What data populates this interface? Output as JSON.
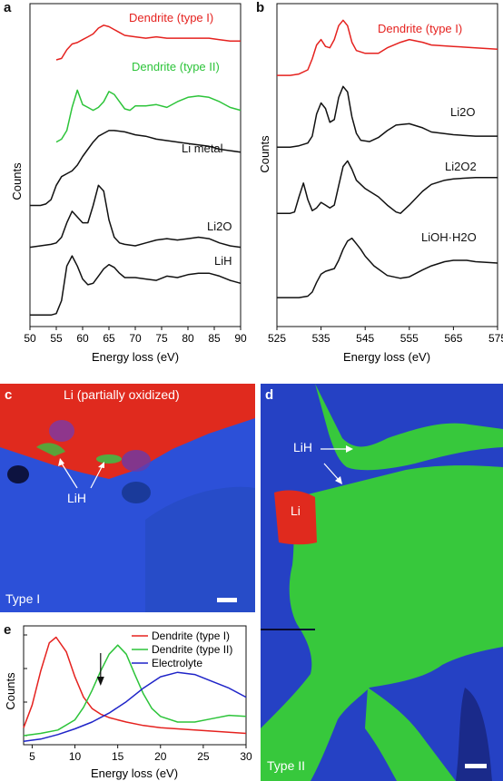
{
  "panels": {
    "a": {
      "letter": "a",
      "ylabel": "Counts",
      "xlabel": "Energy loss (eV)",
      "xticks": [
        "50",
        "55",
        "60",
        "65",
        "70",
        "75",
        "80",
        "85",
        "90"
      ],
      "labels": {
        "d1": "Dendrite (type I)",
        "d2": "Dendrite (type II)",
        "li": "Li metal",
        "li2o": "Li2O",
        "lih": "LiH"
      }
    },
    "b": {
      "letter": "b",
      "ylabel": "Counts",
      "xlabel": "Energy loss (eV)",
      "xticks": [
        "525",
        "535",
        "545",
        "555",
        "565",
        "575"
      ],
      "labels": {
        "d1": "Dendrite (type I)",
        "li2o": "Li2O",
        "li2o2": "Li2O2",
        "lioh": "LiOH·H2O"
      }
    },
    "c": {
      "letter": "c",
      "top_label": "Li (partially oxidized)",
      "lih_label": "LiH",
      "corner_label": "Type I"
    },
    "d": {
      "letter": "d",
      "lih_label": "LiH",
      "li_label": "Li",
      "corner_label": "Type II"
    },
    "e": {
      "letter": "e",
      "ylabel": "Counts",
      "xlabel": "Energy loss (eV)",
      "xticks": [
        "5",
        "10",
        "15",
        "20",
        "25",
        "30"
      ],
      "legend": [
        "Dendrite (type I)",
        "Dendrite (type II)",
        "Electrolyte"
      ]
    }
  },
  "colors": {
    "red": "#e5221f",
    "green": "#2dc43a",
    "blue": "#1f24c8",
    "black": "#111111"
  },
  "chart_data": [
    {
      "panel": "a",
      "type": "line",
      "xlabel": "Energy loss (eV)",
      "ylabel": "Counts",
      "xlim": [
        50,
        90
      ],
      "yticks_shown": false,
      "series": [
        {
          "name": "Dendrite (type I)",
          "color": "#e5221f",
          "x": [
            55,
            56,
            57,
            58,
            59,
            60,
            61,
            62,
            63,
            64,
            65,
            66,
            67,
            68,
            70,
            72,
            74,
            76,
            78,
            80,
            82,
            84,
            86,
            88,
            90
          ],
          "y": [
            8.95,
            9.0,
            9.3,
            9.5,
            9.55,
            9.65,
            9.75,
            9.85,
            10.05,
            10.15,
            10.1,
            10.0,
            9.9,
            9.8,
            9.75,
            9.7,
            9.75,
            9.7,
            9.7,
            9.7,
            9.7,
            9.7,
            9.65,
            9.6,
            9.6
          ]
        },
        {
          "name": "Dendrite (type II)",
          "color": "#2dc43a",
          "x": [
            55,
            56,
            57,
            58,
            59,
            60,
            61,
            62,
            63,
            64,
            65,
            66,
            67,
            68,
            69,
            70,
            72,
            74,
            76,
            78,
            80,
            82,
            84,
            86,
            88,
            90
          ],
          "y": [
            6.1,
            6.2,
            6.5,
            7.3,
            7.9,
            7.4,
            7.3,
            7.2,
            7.3,
            7.5,
            7.85,
            7.75,
            7.5,
            7.25,
            7.2,
            7.35,
            7.35,
            7.4,
            7.3,
            7.5,
            7.65,
            7.7,
            7.65,
            7.5,
            7.3,
            7.2
          ]
        },
        {
          "name": "Li metal",
          "color": "#111111",
          "x": [
            50,
            51,
            52,
            53,
            54,
            55,
            56,
            57,
            58,
            59,
            60,
            61,
            62,
            63,
            64,
            65,
            66,
            68,
            70,
            72,
            74,
            76,
            78,
            80,
            82,
            84,
            86,
            88,
            90
          ],
          "y": [
            3.9,
            3.9,
            3.9,
            3.95,
            4.1,
            4.6,
            4.9,
            5.0,
            5.1,
            5.3,
            5.6,
            5.85,
            6.1,
            6.3,
            6.4,
            6.5,
            6.5,
            6.45,
            6.35,
            6.3,
            6.2,
            6.15,
            6.1,
            6.05,
            6.0,
            5.95,
            5.85,
            5.8,
            5.75
          ]
        },
        {
          "name": "Li2O",
          "color": "#111111",
          "x": [
            50,
            52,
            54,
            55,
            56,
            57,
            58,
            59,
            60,
            61,
            62,
            63,
            64,
            65,
            66,
            67,
            68,
            70,
            72,
            74,
            76,
            78,
            80,
            82,
            84,
            86,
            88,
            90
          ],
          "y": [
            2.45,
            2.5,
            2.55,
            2.6,
            2.8,
            3.3,
            3.7,
            3.5,
            3.3,
            3.3,
            3.9,
            4.6,
            4.4,
            3.4,
            2.8,
            2.6,
            2.55,
            2.5,
            2.6,
            2.7,
            2.75,
            2.7,
            2.75,
            2.8,
            2.75,
            2.6,
            2.5,
            2.45
          ]
        },
        {
          "name": "LiH",
          "color": "#111111",
          "x": [
            50,
            52,
            54,
            55,
            56,
            57,
            58,
            59,
            60,
            61,
            62,
            63,
            64,
            65,
            66,
            67,
            68,
            70,
            72,
            74,
            76,
            78,
            80,
            82,
            84,
            86,
            88,
            90
          ],
          "y": [
            0.1,
            0.1,
            0.1,
            0.15,
            0.6,
            1.8,
            2.15,
            1.8,
            1.35,
            1.15,
            1.2,
            1.45,
            1.7,
            1.85,
            1.75,
            1.55,
            1.4,
            1.4,
            1.35,
            1.3,
            1.45,
            1.4,
            1.5,
            1.55,
            1.55,
            1.45,
            1.3,
            1.2
          ]
        }
      ]
    },
    {
      "panel": "b",
      "type": "line",
      "xlabel": "Energy loss (eV)",
      "ylabel": "Counts",
      "xlim": [
        525,
        575
      ],
      "yticks_shown": false,
      "series": [
        {
          "name": "Dendrite (type I)",
          "color": "#e5221f",
          "x": [
            525,
            528,
            530,
            532,
            533,
            534,
            535,
            536,
            537,
            538,
            539,
            540,
            541,
            542,
            543,
            545,
            548,
            550,
            553,
            555,
            558,
            560,
            565,
            570,
            575
          ],
          "y": [
            9.3,
            9.3,
            9.35,
            9.5,
            9.9,
            10.4,
            10.6,
            10.35,
            10.3,
            10.6,
            11.1,
            11.3,
            11.1,
            10.5,
            10.2,
            10.1,
            10.1,
            10.3,
            10.5,
            10.6,
            10.5,
            10.4,
            10.35,
            10.3,
            10.25
          ]
        },
        {
          "name": "Li2O",
          "color": "#111111",
          "x": [
            525,
            528,
            530,
            532,
            533,
            534,
            535,
            536,
            537,
            538,
            539,
            540,
            541,
            542,
            543,
            544,
            546,
            548,
            550,
            552,
            555,
            558,
            560,
            565,
            570,
            575
          ],
          "y": [
            6.7,
            6.7,
            6.75,
            6.85,
            7.1,
            7.9,
            8.3,
            8.1,
            7.6,
            7.7,
            8.5,
            8.9,
            8.7,
            7.8,
            7.2,
            6.95,
            6.9,
            7.05,
            7.3,
            7.5,
            7.55,
            7.4,
            7.25,
            7.15,
            7.1,
            7.1
          ]
        },
        {
          "name": "Li2O2",
          "color": "#111111",
          "x": [
            525,
            528,
            529,
            530,
            531,
            532,
            533,
            534,
            535,
            536,
            537,
            538,
            539,
            540,
            541,
            542,
            543,
            545,
            548,
            550,
            552,
            553,
            555,
            558,
            560,
            563,
            565,
            570,
            575
          ],
          "y": [
            4.3,
            4.3,
            4.35,
            4.9,
            5.4,
            4.8,
            4.4,
            4.5,
            4.7,
            4.6,
            4.5,
            4.6,
            5.3,
            6.0,
            6.2,
            5.9,
            5.5,
            5.2,
            4.9,
            4.6,
            4.35,
            4.3,
            4.6,
            5.1,
            5.35,
            5.5,
            5.55,
            5.6,
            5.6
          ]
        },
        {
          "name": "LiOH·H2O",
          "color": "#111111",
          "x": [
            525,
            530,
            532,
            533,
            534,
            535,
            536,
            537,
            538,
            539,
            540,
            541,
            542,
            543,
            544,
            545,
            547,
            550,
            553,
            555,
            558,
            560,
            563,
            565,
            568,
            570,
            575
          ],
          "y": [
            1.25,
            1.25,
            1.3,
            1.45,
            1.8,
            2.1,
            2.2,
            2.25,
            2.3,
            2.6,
            3.0,
            3.3,
            3.4,
            3.2,
            3.0,
            2.75,
            2.4,
            2.05,
            1.95,
            2.0,
            2.25,
            2.4,
            2.55,
            2.6,
            2.6,
            2.55,
            2.5
          ]
        }
      ]
    },
    {
      "panel": "e",
      "type": "line",
      "xlabel": "Energy loss (eV)",
      "ylabel": "Counts",
      "xlim": [
        4,
        30
      ],
      "yticks_shown": false,
      "arrow_x": 13,
      "series": [
        {
          "name": "Dendrite (type I)",
          "color": "#e5221f",
          "x": [
            4,
            5,
            6,
            7,
            7.8,
            9,
            10,
            11,
            12,
            13,
            14,
            15,
            16,
            18,
            20,
            22,
            24,
            26,
            28,
            30
          ],
          "y": [
            0.15,
            0.35,
            0.65,
            0.9,
            0.95,
            0.82,
            0.6,
            0.42,
            0.32,
            0.27,
            0.24,
            0.22,
            0.2,
            0.17,
            0.15,
            0.14,
            0.13,
            0.12,
            0.11,
            0.1
          ]
        },
        {
          "name": "Dendrite (type II)",
          "color": "#2dc43a",
          "x": [
            4,
            6,
            8,
            10,
            11,
            12,
            13,
            14,
            15,
            16,
            17,
            18,
            19,
            20,
            22,
            24,
            26,
            28,
            30
          ],
          "y": [
            0.08,
            0.1,
            0.13,
            0.22,
            0.33,
            0.48,
            0.65,
            0.8,
            0.88,
            0.8,
            0.62,
            0.45,
            0.32,
            0.25,
            0.2,
            0.2,
            0.23,
            0.26,
            0.25
          ]
        },
        {
          "name": "Electrolyte",
          "color": "#1f24c8",
          "x": [
            4,
            6,
            8,
            10,
            12,
            14,
            16,
            18,
            20,
            22,
            24,
            26,
            28,
            30
          ],
          "y": [
            0.03,
            0.05,
            0.09,
            0.14,
            0.2,
            0.28,
            0.38,
            0.5,
            0.6,
            0.64,
            0.62,
            0.56,
            0.5,
            0.42
          ]
        }
      ]
    }
  ]
}
